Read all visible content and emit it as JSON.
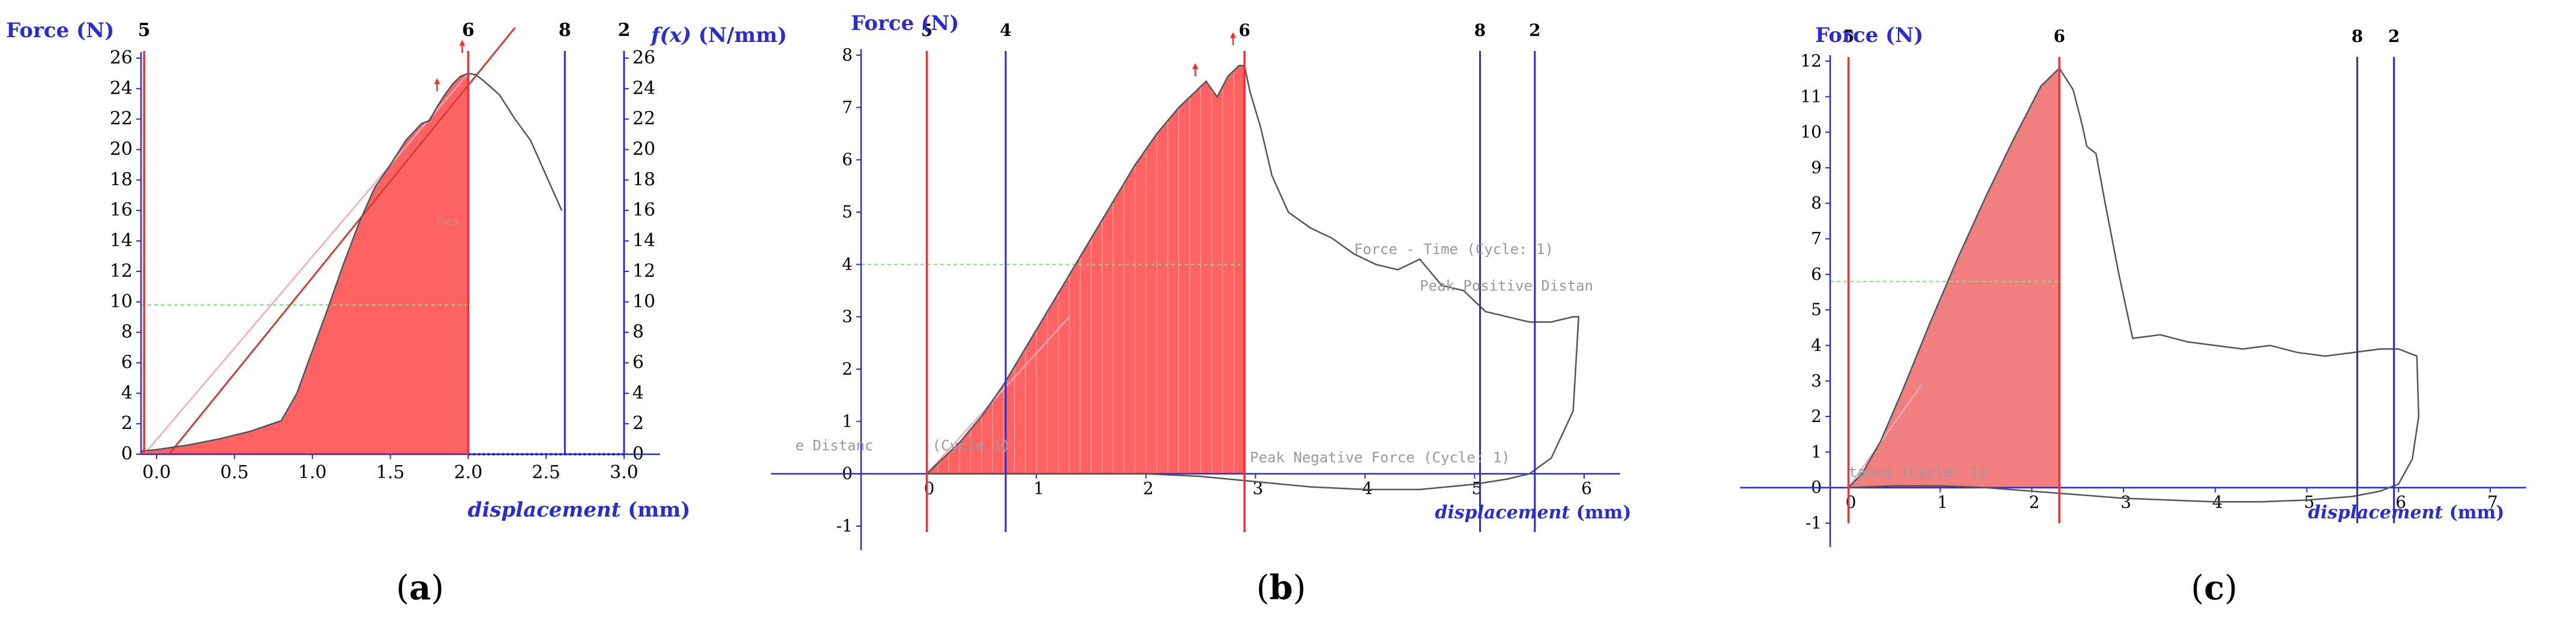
{
  "colors": {
    "blue": "#2b2bd6",
    "red": "#ff2a2a",
    "fill": "#ff5a5a",
    "fill_c": "#f07878",
    "curve": "#555555",
    "green_dash": "#7be07b",
    "black": "#000000",
    "gray_text": "#9a9a9a"
  },
  "chart_data": [
    {
      "type": "line",
      "panel_label": "(a)",
      "panel_letter": "a",
      "ylabel": "Force (N)",
      "y2label_italic": "f(x)",
      "y2label_rest": " (N/mm)",
      "xlabel_italic": "displacement",
      "xlabel_rest": " (mm)",
      "xlim": [
        -0.1,
        3.0
      ],
      "ylim": [
        0,
        26
      ],
      "y_ticks": [
        "0",
        "2",
        "4",
        "6",
        "8",
        "10",
        "12",
        "14",
        "16",
        "18",
        "20",
        "22",
        "24",
        "26"
      ],
      "y2_ticks": [
        "0",
        "2",
        "4",
        "6",
        "8",
        "10",
        "12",
        "14",
        "16",
        "18",
        "20",
        "22",
        "24",
        "26"
      ],
      "x_ticks": [
        "0.0",
        "0.5",
        "1.0",
        "1.5",
        "2.0",
        "2.5",
        "3.0"
      ],
      "cursors": [
        {
          "id": "5",
          "x": -0.08,
          "color": "red"
        },
        {
          "id": "6",
          "x": 2.0,
          "color": "red"
        },
        {
          "id": "8",
          "x": 2.62,
          "color": "blue"
        },
        {
          "id": "2",
          "x": 3.0,
          "color": "blue"
        }
      ],
      "dashed_level": 9.8,
      "series": [
        {
          "x": [
            -0.1,
            0.0,
            0.2,
            0.4,
            0.6,
            0.8,
            0.9,
            1.0,
            1.1,
            1.2,
            1.3,
            1.4,
            1.5,
            1.6,
            1.7,
            1.75,
            1.8,
            1.85,
            1.9,
            1.95,
            2.0,
            2.05,
            2.1,
            2.2,
            2.3,
            2.4,
            2.5,
            2.6
          ],
          "y": [
            0.2,
            0.3,
            0.6,
            1.0,
            1.5,
            2.2,
            4.0,
            6.8,
            9.6,
            12.5,
            15.2,
            17.5,
            19.0,
            20.6,
            21.7,
            21.9,
            22.8,
            23.6,
            24.3,
            24.8,
            25.0,
            24.9,
            24.5,
            23.6,
            22.0,
            20.6,
            18.3,
            16.0
          ]
        }
      ],
      "fill_to_x": 2.0,
      "fit_lines": [
        {
          "x": [
            0.08,
            2.3
          ],
          "y": [
            0.0,
            28.0
          ],
          "color": "red"
        },
        {
          "x": [
            -0.08,
            2.0
          ],
          "y": [
            0.0,
            25.0
          ],
          "color": "pink"
        }
      ],
      "faint_text": "Pea",
      "faint_text_pos": [
        1.95,
        15.0
      ]
    },
    {
      "type": "line",
      "panel_label": "(b)",
      "panel_letter": "b",
      "ylabel": "Force (N)",
      "xlabel_italic": "displacement",
      "xlabel_rest": " (mm)",
      "xlim": [
        -0.6,
        6.0
      ],
      "ylim": [
        -1,
        8
      ],
      "y_ticks": [
        "-1",
        "0",
        "1",
        "2",
        "3",
        "4",
        "5",
        "6",
        "7",
        "8"
      ],
      "x_ticks": [
        "0",
        "1",
        "2",
        "3",
        "4",
        "5",
        "6"
      ],
      "cursors": [
        {
          "id": "5",
          "x": 0.0,
          "color": "red"
        },
        {
          "id": "4",
          "x": 0.72,
          "color": "blue"
        },
        {
          "id": "6",
          "x": 2.9,
          "color": "red"
        },
        {
          "id": "8",
          "x": 5.05,
          "color": "blue"
        },
        {
          "id": "2",
          "x": 5.55,
          "color": "blue"
        }
      ],
      "dashed_level": 4.0,
      "series": [
        {
          "x": [
            0.0,
            0.1,
            0.3,
            0.5,
            0.7,
            0.9,
            1.1,
            1.3,
            1.5,
            1.7,
            1.9,
            2.1,
            2.3,
            2.45,
            2.55,
            2.65,
            2.75,
            2.85,
            2.9,
            2.95,
            3.05,
            3.15,
            3.3,
            3.5,
            3.7,
            3.9,
            4.1,
            4.3,
            4.5,
            4.7,
            4.9,
            5.1,
            5.3,
            5.5,
            5.7,
            5.9,
            5.95,
            5.9,
            5.7,
            5.5,
            5.3,
            5.0,
            4.5,
            4.0,
            3.5,
            3.0,
            2.5,
            2.0,
            1.5,
            1.0,
            0.5,
            0.0
          ],
          "y": [
            0.0,
            0.2,
            0.6,
            1.1,
            1.7,
            2.4,
            3.1,
            3.8,
            4.5,
            5.2,
            5.9,
            6.5,
            7.0,
            7.3,
            7.5,
            7.2,
            7.6,
            7.8,
            7.8,
            7.3,
            6.6,
            5.7,
            5.0,
            4.7,
            4.5,
            4.2,
            4.0,
            3.9,
            4.1,
            3.6,
            3.5,
            3.1,
            3.0,
            2.9,
            2.9,
            3.0,
            3.0,
            1.2,
            0.3,
            0.0,
            -0.1,
            -0.2,
            -0.3,
            -0.3,
            -0.25,
            -0.15,
            -0.05,
            0.0,
            0.0,
            0.0,
            0.0,
            0.0
          ]
        }
      ],
      "fill_to_x": 2.9,
      "fit_lines": [
        {
          "x": [
            0.0,
            1.3
          ],
          "y": [
            0.0,
            3.0
          ],
          "color": "pink"
        }
      ],
      "annotations": [
        {
          "text": "Force - Time (Cycle: 1)",
          "x": 3.9,
          "y": 4.2
        },
        {
          "text": "Peak Positive Distan",
          "x": 4.5,
          "y": 3.5
        },
        {
          "text": "e Distanc",
          "x": -1.2,
          "y": 0.45
        },
        {
          "text": "(Cycle 1)",
          "x": 0.05,
          "y": 0.45
        },
        {
          "text": "Peak Negative Force (Cycle: 1)",
          "x": 2.95,
          "y": 0.22
        }
      ]
    },
    {
      "type": "line",
      "panel_label": "(c)",
      "panel_letter": "c",
      "ylabel": "Force (N)",
      "xlabel_italic": "displacement",
      "xlabel_rest": " (mm)",
      "xlim": [
        -0.2,
        7.0
      ],
      "ylim": [
        -1,
        12
      ],
      "y_ticks": [
        "-1",
        "0",
        "1",
        "2",
        "3",
        "4",
        "5",
        "6",
        "7",
        "8",
        "9",
        "10",
        "11",
        "12"
      ],
      "x_ticks": [
        "0",
        "1",
        "2",
        "3",
        "4",
        "5",
        "6",
        "7"
      ],
      "cursors": [
        {
          "id": "5",
          "x": 0.0,
          "color": "red"
        },
        {
          "id": "6",
          "x": 2.3,
          "color": "red"
        },
        {
          "id": "8",
          "x": 5.55,
          "color": "blue"
        },
        {
          "id": "2",
          "x": 5.95,
          "color": "blue"
        }
      ],
      "dashed_level": 5.8,
      "series": [
        {
          "x": [
            0.0,
            0.15,
            0.35,
            0.6,
            0.9,
            1.2,
            1.5,
            1.8,
            2.1,
            2.3,
            2.35,
            2.45,
            2.55,
            2.6,
            2.7,
            2.8,
            2.95,
            3.1,
            3.4,
            3.7,
            4.0,
            4.3,
            4.6,
            4.9,
            5.2,
            5.5,
            5.8,
            6.0,
            6.1,
            6.2,
            6.22,
            6.15,
            6.0,
            5.8,
            5.5,
            5.0,
            4.5,
            4.0,
            3.5,
            3.0,
            2.5,
            2.0,
            1.5,
            1.0,
            0.5,
            0.0
          ],
          "y": [
            0.0,
            0.4,
            1.3,
            2.8,
            4.7,
            6.5,
            8.2,
            9.8,
            11.3,
            11.8,
            11.6,
            11.2,
            10.2,
            9.6,
            9.4,
            8.0,
            6.0,
            4.2,
            4.3,
            4.1,
            4.0,
            3.9,
            4.0,
            3.8,
            3.7,
            3.8,
            3.9,
            3.9,
            3.8,
            3.7,
            2.0,
            0.8,
            0.1,
            -0.1,
            -0.25,
            -0.35,
            -0.4,
            -0.4,
            -0.35,
            -0.3,
            -0.2,
            -0.1,
            0.0,
            0.05,
            0.05,
            0.0
          ]
        }
      ],
      "fill_to_x": 2.3,
      "fit_lines": [
        {
          "x": [
            0.0,
            0.8
          ],
          "y": [
            0.0,
            2.9
          ],
          "color": "pink"
        }
      ],
      "annotations": [
        {
          "text": "tance (Cycle: 1)",
          "x": 0.0,
          "y": 0.3
        }
      ]
    }
  ]
}
